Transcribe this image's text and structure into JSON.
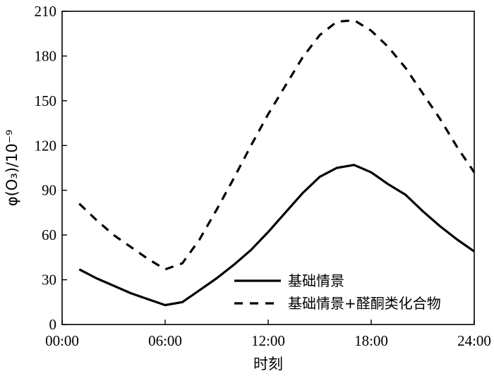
{
  "chart_data": {
    "type": "line",
    "title": "",
    "xlabel": "时刻",
    "ylabel_text": "φ(O₃)/10⁻⁹",
    "ylim": [
      0,
      210
    ],
    "xlim": [
      0,
      24
    ],
    "x_ticks": [
      {
        "value": 0,
        "label": "00:00"
      },
      {
        "value": 6,
        "label": "06:00"
      },
      {
        "value": 12,
        "label": "12:00"
      },
      {
        "value": 18,
        "label": "18:00"
      },
      {
        "value": 24,
        "label": "24:00"
      }
    ],
    "y_ticks": [
      0,
      30,
      60,
      90,
      120,
      150,
      180,
      210
    ],
    "grid": false,
    "legend_position": "bottom-right",
    "x": [
      1,
      2,
      3,
      4,
      5,
      6,
      7,
      8,
      9,
      10,
      11,
      12,
      13,
      14,
      15,
      16,
      17,
      18,
      19,
      20,
      21,
      22,
      23,
      24
    ],
    "series": [
      {
        "name": "基础情景",
        "style": "solid",
        "values": [
          37,
          31,
          26,
          21,
          17,
          13,
          15,
          23,
          31,
          40,
          50,
          62,
          75,
          88,
          99,
          105,
          107,
          102,
          94,
          87,
          76,
          66,
          57,
          49
        ]
      },
      {
        "name": "基础情景+醛酮类化合物",
        "style": "dashed",
        "values": [
          81,
          70,
          60,
          52,
          44,
          37,
          41,
          57,
          77,
          98,
          120,
          141,
          160,
          179,
          194,
          203,
          204,
          197,
          186,
          172,
          155,
          138,
          119,
          102
        ]
      }
    ]
  }
}
